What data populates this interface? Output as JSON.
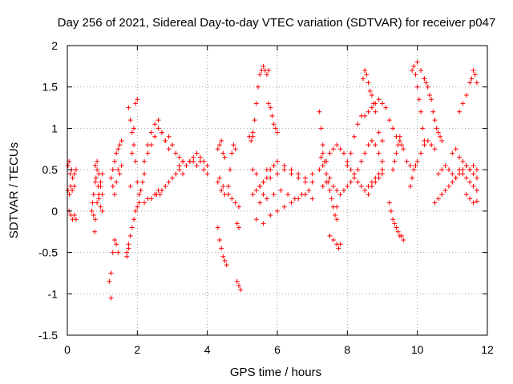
{
  "chart_data": {
    "type": "scatter",
    "title": "Day 256 of 2021, Sidereal Day-to-day VTEC variation (SDTVAR) for receiver p047",
    "xlabel": "GPS time / hours",
    "ylabel": "SDTVAR / TECUs",
    "xlim": [
      0,
      12
    ],
    "ylim": [
      -1.5,
      2
    ],
    "xticks": [
      0,
      2,
      4,
      6,
      8,
      10,
      12
    ],
    "xtick_labels": [
      "0",
      "2",
      "4",
      "6",
      "8",
      "10",
      "12"
    ],
    "yticks": [
      -1.5,
      -1,
      -0.5,
      0,
      0.5,
      1,
      1.5,
      2
    ],
    "ytick_labels": [
      "-1.5",
      "-1",
      "-0.5",
      "0",
      "0.5",
      "1",
      "1.5",
      "2"
    ],
    "grid": true,
    "marker": "+",
    "color": "#ff0000",
    "series": [
      {
        "name": "SDTVAR",
        "x": [
          0.02,
          0.05,
          0.08,
          0.12,
          0.15,
          0.2,
          0.25,
          0.02,
          0.06,
          0.1,
          0.14,
          0.2,
          0.05,
          0.1,
          0.15,
          0.2,
          0.25,
          0.7,
          0.72,
          0.75,
          0.8,
          0.82,
          0.85,
          0.88,
          0.9,
          0.95,
          1.0,
          0.75,
          0.8,
          0.85,
          0.9,
          0.95,
          1.0,
          0.8,
          0.85,
          0.9,
          0.95,
          1.0,
          0.78,
          1.2,
          1.25,
          1.3,
          1.35,
          1.4,
          1.45,
          1.25,
          1.3,
          1.35,
          1.4,
          1.45,
          1.5,
          1.55,
          1.3,
          1.35,
          1.4,
          1.45,
          1.5,
          1.55,
          1.25,
          1.7,
          1.75,
          1.8,
          1.85,
          1.9,
          1.95,
          2.0,
          2.05,
          1.7,
          1.75,
          1.8,
          1.85,
          1.9,
          1.95,
          2.0,
          1.75,
          1.8,
          1.85,
          1.9,
          1.95,
          2.0,
          2.05,
          2.1,
          2.15,
          2.2,
          2.2,
          2.3,
          2.4,
          2.5,
          2.55,
          2.6,
          2.65,
          2.7,
          2.8,
          2.9,
          3.0,
          3.1,
          3.2,
          3.3,
          2.3,
          2.4,
          2.5,
          2.6,
          2.7,
          2.8,
          2.9,
          2.2,
          2.3,
          2.4,
          2.5,
          2.6,
          2.7,
          2.8,
          2.9,
          3.0,
          3.1,
          3.2,
          3.3,
          3.4,
          3.5,
          3.6,
          3.7,
          3.8,
          3.9,
          4.0,
          3.2,
          3.3,
          3.4,
          3.5,
          3.6,
          3.7,
          3.8,
          3.9,
          4.0,
          4.3,
          4.35,
          4.4,
          4.45,
          4.5,
          4.55,
          4.6,
          4.65,
          4.7,
          4.75,
          4.8,
          4.3,
          4.35,
          4.4,
          4.45,
          4.5,
          4.3,
          4.35,
          4.4,
          4.45,
          4.5,
          4.6,
          4.7,
          4.8,
          4.9,
          4.85,
          4.9,
          4.95,
          4.85,
          4.9,
          5.2,
          5.25,
          5.3,
          5.3,
          5.35,
          5.4,
          5.45,
          5.5,
          5.55,
          5.6,
          5.65,
          5.7,
          5.75,
          5.3,
          5.4,
          5.5,
          5.6,
          5.7,
          5.75,
          5.8,
          5.85,
          5.9,
          5.95,
          6.0,
          5.3,
          5.4,
          5.5,
          5.6,
          5.7,
          5.8,
          5.9,
          6.0,
          6.2,
          6.4,
          6.6,
          6.8,
          7.0,
          5.5,
          5.7,
          5.9,
          6.1,
          6.3,
          6.5,
          6.7,
          6.9,
          5.4,
          5.6,
          5.8,
          6.0,
          6.2,
          6.4,
          6.6,
          6.8,
          7.0,
          5.6,
          5.8,
          6.0,
          6.2,
          6.4,
          6.6,
          6.8,
          7.0,
          7.2,
          7.25,
          7.3,
          7.35,
          7.4,
          7.45,
          7.5,
          7.55,
          7.6,
          7.65,
          7.7,
          7.2,
          7.3,
          7.4,
          7.5,
          7.6,
          7.7,
          7.8,
          7.9,
          8.0,
          8.1,
          8.2,
          8.3,
          8.4,
          8.5,
          8.6,
          8.7,
          8.8,
          8.9,
          9.0,
          7.3,
          7.4,
          7.5,
          7.6,
          7.7,
          7.8,
          7.9,
          8.0,
          8.1,
          8.2,
          8.3,
          8.4,
          8.5,
          8.6,
          8.7,
          8.8,
          8.9,
          9.0,
          7.5,
          7.6,
          7.7,
          7.75,
          7.8,
          7.7,
          7.25,
          7.3,
          8.0,
          8.1,
          8.2,
          8.3,
          8.4,
          8.45,
          8.5,
          8.55,
          8.6,
          8.65,
          8.7,
          8.75,
          8.8,
          8.9,
          9.0,
          8.5,
          8.6,
          8.7,
          8.8,
          8.9,
          9.0,
          9.1,
          8.6,
          8.7,
          8.8,
          8.9,
          9.0,
          9.2,
          9.25,
          9.3,
          9.35,
          9.4,
          9.45,
          9.5,
          9.55,
          9.6,
          9.3,
          9.35,
          9.4,
          9.45,
          9.5,
          9.2,
          9.3,
          9.4,
          9.5,
          9.55,
          9.6,
          9.7,
          9.8,
          9.85,
          9.9,
          9.95,
          10.0,
          10.05,
          10.1,
          10.15,
          10.2,
          9.8,
          9.85,
          9.9,
          9.95,
          10.0,
          10.1,
          10.2,
          10.3,
          10.4,
          10.5,
          10.2,
          10.25,
          10.3,
          10.35,
          10.4,
          10.45,
          10.5,
          10.55,
          10.6,
          10.65,
          10.7,
          10.5,
          10.6,
          10.7,
          10.8,
          10.9,
          11.0,
          11.1,
          11.2,
          11.3,
          11.4,
          11.5,
          11.6,
          11.7,
          10.6,
          10.7,
          10.8,
          10.9,
          11.0,
          11.1,
          11.2,
          11.3,
          11.4,
          11.5,
          11.6,
          11.7,
          11.0,
          11.1,
          11.2,
          11.3,
          11.4,
          11.5,
          11.6,
          11.7,
          11.2,
          11.3,
          11.4,
          11.5,
          11.55,
          11.6,
          11.65,
          11.7,
          11.4,
          11.5,
          11.6,
          11.7,
          10.0,
          10.1,
          10.2
        ],
        "y": [
          0.55,
          0.6,
          0.45,
          0.5,
          0.4,
          0.45,
          0.5,
          0.25,
          0.2,
          0.3,
          0.25,
          0.3,
          0.0,
          -0.05,
          -0.1,
          -0.05,
          -0.1,
          0.0,
          0.1,
          0.2,
          0.35,
          0.4,
          0.5,
          0.3,
          0.15,
          0.05,
          0.0,
          -0.05,
          -0.1,
          0.1,
          0.2,
          0.35,
          0.45,
          0.55,
          0.6,
          0.45,
          0.3,
          0.2,
          -0.25,
          -0.85,
          -0.75,
          -0.5,
          -0.35,
          -0.4,
          -0.5,
          0.4,
          0.5,
          0.6,
          0.7,
          0.75,
          0.8,
          0.85,
          0.3,
          0.2,
          0.35,
          0.5,
          0.45,
          0.55,
          -1.05,
          -0.5,
          -0.4,
          -0.3,
          -0.2,
          -0.1,
          0.0,
          0.05,
          0.1,
          -0.55,
          -0.45,
          0.3,
          0.7,
          1.0,
          1.3,
          1.35,
          1.25,
          1.1,
          0.95,
          0.8,
          0.6,
          0.35,
          0.2,
          0.25,
          0.35,
          0.45,
          0.1,
          0.15,
          0.15,
          0.2,
          0.2,
          0.25,
          0.2,
          0.25,
          0.3,
          0.35,
          0.4,
          0.45,
          0.55,
          0.6,
          0.8,
          0.95,
          1.05,
          1.1,
          0.95,
          0.85,
          0.9,
          0.6,
          0.7,
          0.8,
          0.9,
          1.0,
          0.95,
          0.85,
          0.75,
          0.8,
          0.7,
          0.65,
          0.6,
          0.55,
          0.6,
          0.6,
          0.55,
          0.65,
          0.6,
          0.55,
          0.5,
          0.45,
          0.55,
          0.6,
          0.65,
          0.7,
          0.6,
          0.5,
          0.45,
          -0.2,
          -0.35,
          -0.45,
          -0.55,
          -0.6,
          -0.65,
          0.3,
          0.5,
          0.7,
          0.8,
          0.75,
          0.35,
          0.4,
          0.25,
          0.3,
          0.2,
          0.75,
          0.8,
          0.85,
          0.7,
          0.65,
          0.2,
          0.15,
          0.1,
          0.05,
          -0.85,
          -0.9,
          -0.95,
          -0.15,
          -0.2,
          0.9,
          0.85,
          0.9,
          0.95,
          1.1,
          1.3,
          1.5,
          1.65,
          1.7,
          1.75,
          1.7,
          1.65,
          1.7,
          0.5,
          0.45,
          0.3,
          0.2,
          0.5,
          1.3,
          1.25,
          1.15,
          1.05,
          1.0,
          0.95,
          0.2,
          0.25,
          0.3,
          0.35,
          0.4,
          0.5,
          0.55,
          0.6,
          0.55,
          0.5,
          0.45,
          0.4,
          0.35,
          0.1,
          0.15,
          0.2,
          0.25,
          0.2,
          0.15,
          0.2,
          0.25,
          -0.1,
          -0.15,
          -0.05,
          0.0,
          0.05,
          0.1,
          0.15,
          0.2,
          0.15,
          0.35,
          0.4,
          0.45,
          0.5,
          0.45,
          0.4,
          0.35,
          0.45,
          1.2,
          1.0,
          0.8,
          0.6,
          0.45,
          0.35,
          0.25,
          0.15,
          0.05,
          -0.05,
          -0.1,
          0.5,
          0.55,
          0.6,
          0.7,
          0.75,
          0.8,
          0.75,
          0.7,
          0.6,
          0.5,
          0.45,
          0.5,
          0.6,
          0.7,
          0.8,
          0.85,
          0.8,
          0.7,
          0.6,
          0.3,
          0.35,
          0.4,
          0.3,
          0.25,
          0.2,
          0.25,
          0.3,
          0.35,
          0.4,
          0.35,
          0.3,
          0.25,
          0.2,
          0.3,
          0.35,
          0.4,
          0.45,
          -0.3,
          -0.35,
          -0.4,
          -0.45,
          -0.4,
          0.05,
          0.65,
          0.7,
          0.55,
          0.7,
          0.9,
          1.05,
          1.15,
          1.6,
          1.7,
          1.65,
          1.55,
          1.45,
          1.4,
          1.3,
          1.2,
          0.95,
          0.85,
          1.15,
          1.2,
          1.25,
          1.3,
          1.35,
          1.3,
          1.25,
          0.3,
          0.35,
          0.4,
          0.45,
          0.5,
          0.1,
          0.0,
          -0.1,
          -0.15,
          -0.2,
          -0.25,
          -0.3,
          -0.3,
          -0.35,
          0.5,
          0.6,
          0.7,
          0.8,
          0.9,
          1.1,
          1.0,
          0.9,
          0.85,
          0.8,
          0.75,
          0.6,
          0.55,
          1.7,
          1.75,
          1.65,
          1.5,
          1.35,
          1.2,
          1.0,
          0.85,
          0.3,
          0.4,
          0.5,
          0.55,
          0.6,
          0.7,
          0.8,
          0.85,
          0.8,
          0.75,
          1.6,
          1.55,
          1.5,
          1.4,
          1.35,
          1.2,
          1.1,
          1.0,
          0.95,
          0.9,
          0.85,
          0.1,
          0.15,
          0.2,
          0.25,
          0.3,
          0.35,
          0.4,
          0.5,
          0.45,
          0.4,
          0.35,
          0.3,
          0.25,
          0.45,
          0.5,
          0.55,
          0.5,
          0.45,
          0.4,
          0.45,
          0.5,
          0.55,
          0.5,
          0.45,
          0.4,
          0.7,
          0.75,
          0.65,
          0.6,
          0.55,
          0.5,
          0.55,
          0.5,
          1.2,
          1.3,
          1.4,
          1.55,
          1.6,
          1.7,
          1.65,
          1.55,
          0.2,
          0.15,
          0.1,
          0.12,
          1.8,
          1.7,
          1.6
        ]
      }
    ]
  }
}
